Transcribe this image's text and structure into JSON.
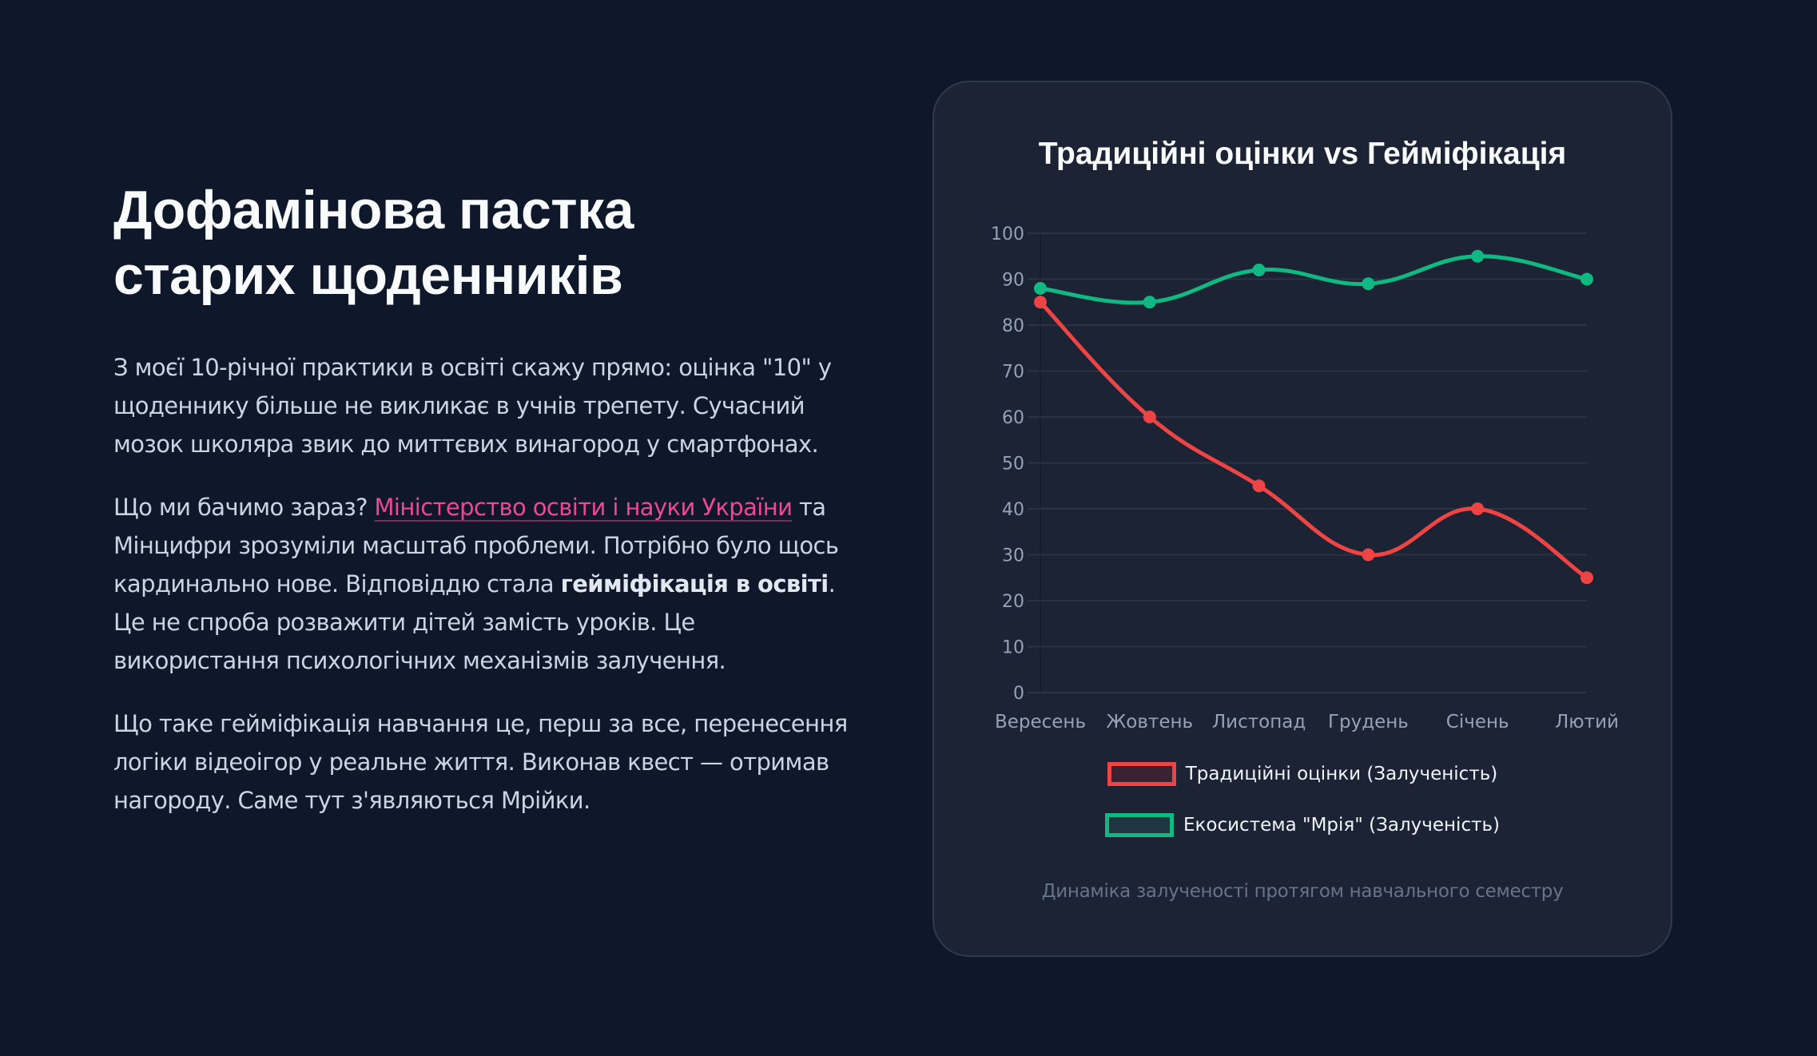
{
  "article": {
    "heading_line1": "Дофамінова пастка",
    "heading_line2": "старих щоденників",
    "paragraph1": "З моєї 10-річної практики в освіті скажу прямо: оцінка \"10\" у щоденнику більше не викликає в учнів трепету. Сучасний мозок школяра звик до миттєвих винагород у смартфонах.",
    "paragraph2_before_link": "Що ми бачимо зараз? ",
    "paragraph2_link": "Міністерство освіти і науки України",
    "paragraph2_after_link": " та Мінцифри зрозуміли масштаб проблеми. Потрібно було щось кардинально нове. Відповіддю стала ",
    "paragraph2_bold": "гейміфікація в освіті",
    "paragraph2_end": ". Це не спроба розважити дітей замість уроків. Це використання психологічних механізмів залучення.",
    "paragraph3": "Що таке гейміфікація навчання це, перш за все, перенесення логіки відеоігор у реальне життя. Виконав квест — отримав нагороду. Саме тут з'являються Мрійки."
  },
  "colors": {
    "background": "#0f172a",
    "card": "#1c2334",
    "link": "#ec4899",
    "traditional": "#ef4444",
    "ecosystem": "#10b981",
    "tick_label": "#94a3b8",
    "grid": "#2a3344"
  },
  "chart_data": {
    "type": "line",
    "title": "Традиційні оцінки vs Гейміфікація",
    "caption": "Динаміка залученості протягом навчального семестру",
    "xlabel": "",
    "ylabel": "",
    "categories": [
      "Вересень",
      "Жовтень",
      "Листопад",
      "Грудень",
      "Січень",
      "Лютий"
    ],
    "series": [
      {
        "name": "Традиційні оцінки (Залученість)",
        "color": "#ef4444",
        "values": [
          85,
          60,
          45,
          30,
          40,
          25
        ]
      },
      {
        "name": "Екосистема \"Мрія\" (Залученість)",
        "color": "#10b981",
        "values": [
          88,
          85,
          92,
          89,
          95,
          90
        ]
      }
    ],
    "ylim": [
      0,
      100
    ],
    "yticks": [
      0,
      10,
      20,
      30,
      40,
      50,
      60,
      70,
      80,
      90,
      100
    ],
    "grid": true,
    "legend_position": "bottom",
    "smooth": true
  }
}
